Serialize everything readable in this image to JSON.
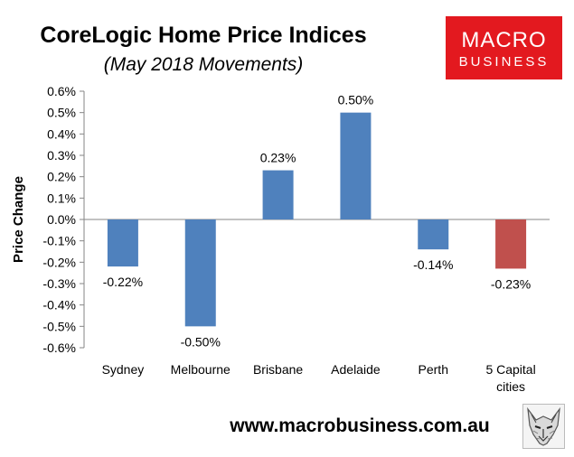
{
  "header": {
    "title": "CoreLogic Home Price Indices",
    "subtitle": "(May 2018 Movements)"
  },
  "logo": {
    "line1": "MACRO",
    "line2": "BUSINESS",
    "background": "#e3191f",
    "text_color": "#ffffff"
  },
  "footer": {
    "url": "www.macrobusiness.com.au",
    "icon": "wolf-icon"
  },
  "chart_data": {
    "type": "bar",
    "title": "CoreLogic Home Price Indices",
    "subtitle": "(May 2018 Movements)",
    "xlabel": "",
    "ylabel": "Price Change",
    "ylim": [
      -0.6,
      0.6
    ],
    "yticks": [
      0.6,
      0.5,
      0.4,
      0.3,
      0.2,
      0.1,
      0.0,
      -0.1,
      -0.2,
      -0.3,
      -0.4,
      -0.5,
      -0.6
    ],
    "ytick_labels": [
      "0.6%",
      "0.5%",
      "0.4%",
      "0.3%",
      "0.2%",
      "0.1%",
      "0.0%",
      "-0.1%",
      "-0.2%",
      "-0.3%",
      "-0.4%",
      "-0.5%",
      "-0.6%"
    ],
    "categories": [
      [
        "Sydney"
      ],
      [
        "Melbourne"
      ],
      [
        "Brisbane"
      ],
      [
        "Adelaide"
      ],
      [
        "Perth"
      ],
      [
        "5 Capital",
        "cities"
      ]
    ],
    "values": [
      -0.22,
      -0.5,
      0.23,
      0.5,
      -0.14,
      -0.23
    ],
    "value_labels": [
      "-0.22%",
      "-0.50%",
      "0.23%",
      "0.50%",
      "-0.14%",
      "-0.23%"
    ],
    "colors": [
      "#4f81bd",
      "#4f81bd",
      "#4f81bd",
      "#4f81bd",
      "#4f81bd",
      "#c0504d"
    ],
    "grid": false,
    "legend": "none"
  }
}
